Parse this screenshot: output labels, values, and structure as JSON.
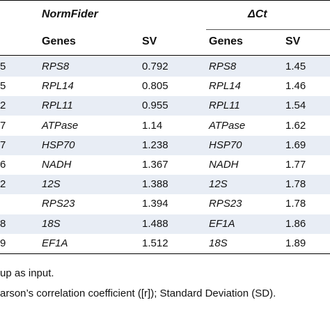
{
  "table": {
    "groups": [
      {
        "label": "NormFider"
      },
      {
        "label": "ΔCt"
      }
    ],
    "subheaders": {
      "genes": "Genes",
      "sv": "SV"
    },
    "rows": [
      {
        "left_fragment": "5",
        "nf_gene": "RPS8",
        "nf_sv": "0.792",
        "dct_gene": "RPS8",
        "dct_sv": "1.45"
      },
      {
        "left_fragment": "5",
        "nf_gene": "RPL14",
        "nf_sv": "0.805",
        "dct_gene": "RPL14",
        "dct_sv": "1.46"
      },
      {
        "left_fragment": "2",
        "nf_gene": "RPL11",
        "nf_sv": "0.955",
        "dct_gene": "RPL11",
        "dct_sv": "1.54"
      },
      {
        "left_fragment": "7",
        "nf_gene": "ATPase",
        "nf_sv": "1.14",
        "dct_gene": "ATPase",
        "dct_sv": "1.62"
      },
      {
        "left_fragment": "7",
        "nf_gene": "HSP70",
        "nf_sv": "1.238",
        "dct_gene": "HSP70",
        "dct_sv": "1.69"
      },
      {
        "left_fragment": "6",
        "nf_gene": "NADH",
        "nf_sv": "1.367",
        "dct_gene": "NADH",
        "dct_sv": "1.77"
      },
      {
        "left_fragment": "2",
        "nf_gene": "12S",
        "nf_sv": "1.388",
        "dct_gene": "12S",
        "dct_sv": "1.78"
      },
      {
        "left_fragment": "",
        "nf_gene": "RPS23",
        "nf_sv": "1.394",
        "dct_gene": "RPS23",
        "dct_sv": "1.78"
      },
      {
        "left_fragment": "8",
        "nf_gene": "18S",
        "nf_sv": "1.488",
        "dct_gene": "EF1A",
        "dct_sv": "1.86"
      },
      {
        "left_fragment": "9",
        "nf_gene": "EF1A",
        "nf_sv": "1.512",
        "dct_gene": "18S",
        "dct_sv": "1.89"
      }
    ]
  },
  "footnotes": {
    "line1": "up as input.",
    "line2": "arson’s correlation coefficient ([r]); Standard Deviation (SD)."
  },
  "colors": {
    "band": "#e8edf5",
    "text": "#111111",
    "rule": "#000000"
  }
}
